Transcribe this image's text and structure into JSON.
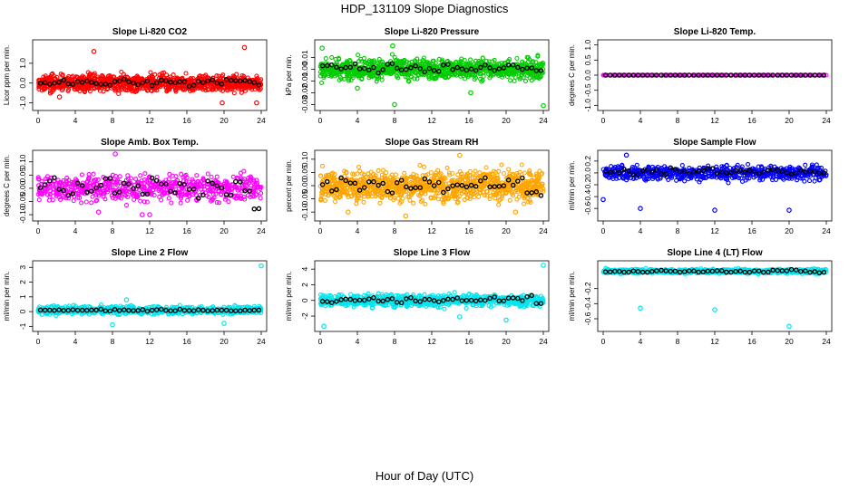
{
  "figure": {
    "title": "HDP_131109  Slope Diagnostics",
    "xlabel": "Hour of Day (UTC)"
  },
  "chart_data": [
    {
      "type": "scatter",
      "title": "Slope Li-820 CO2",
      "ylabel": "Licor ppm per min.",
      "xlim": [
        0,
        24
      ],
      "ylim": [
        -1.2,
        2.0
      ],
      "x_ticks": [
        0,
        4,
        8,
        12,
        16,
        20,
        24
      ],
      "y_ticks": [
        -1.0,
        0.0,
        1.0
      ],
      "y_tick_labels": [
        "-1.0",
        "0.0",
        "1.0"
      ],
      "color": "#ff0000",
      "density": "dense",
      "spread": 0.28,
      "center": 0.0,
      "hourly_means": [
        0.05,
        0.0,
        0.1,
        -0.05,
        0.05,
        0.1,
        0.0,
        -0.1,
        0.05,
        0.15,
        0.0,
        0.05,
        -0.05,
        0.1,
        0.0,
        0.05,
        -0.1,
        0.05,
        0.1,
        0.0,
        0.2,
        0.05,
        0.1,
        -0.05
      ],
      "outliers": [
        {
          "x": 6,
          "y": 1.6
        },
        {
          "x": 22.2,
          "y": 1.8
        },
        {
          "x": 19.8,
          "y": -1.0
        },
        {
          "x": 23.5,
          "y": -1.0
        },
        {
          "x": 2.3,
          "y": -0.7
        }
      ]
    },
    {
      "type": "scatter",
      "title": "Slope Li-820 Pressure",
      "ylabel": "kPa per min.",
      "xlim": [
        0,
        24
      ],
      "ylim": [
        -0.032,
        0.022
      ],
      "x_ticks": [
        0,
        4,
        8,
        12,
        16,
        20,
        24
      ],
      "y_ticks": [
        -0.03,
        -0.02,
        -0.01,
        0.0,
        0.01
      ],
      "y_tick_labels": [
        "-0.03",
        "-0.02",
        "-0.01",
        "0.00",
        "0.01"
      ],
      "color": "#00cc00",
      "density": "dense",
      "spread": 0.006,
      "center": 0.0,
      "hourly_means": [
        0.004,
        0.002,
        0.0,
        0.003,
        0.001,
        0.0,
        -0.002,
        0.004,
        0.001,
        0.0,
        0.002,
        -0.001,
        0.0,
        0.003,
        0.001,
        0.0,
        -0.001,
        0.002,
        0.0,
        0.001,
        0.002,
        0.0,
        0.001,
        0.0
      ],
      "outliers": [
        {
          "x": 0.2,
          "y": 0.018
        },
        {
          "x": 8.0,
          "y": -0.03
        },
        {
          "x": 24.0,
          "y": -0.031
        },
        {
          "x": 16.2,
          "y": -0.02
        },
        {
          "x": 4.0,
          "y": -0.016
        },
        {
          "x": 7.8,
          "y": 0.02
        }
      ]
    },
    {
      "type": "scatter",
      "title": "Slope Li-820 Temp.",
      "ylabel": "degrees C per min.",
      "xlim": [
        0,
        24
      ],
      "ylim": [
        -1.05,
        1.05
      ],
      "x_ticks": [
        0,
        4,
        8,
        12,
        16,
        20,
        24
      ],
      "y_ticks": [
        -1.0,
        -0.5,
        0.0,
        0.5,
        1.0
      ],
      "y_tick_labels": [
        "-1.0",
        "-0.5",
        "0.0",
        "0.5",
        "1.0"
      ],
      "color": "#ff00ff",
      "density": "line",
      "spread": 0.0,
      "center": 0.0,
      "hourly_means": [
        0,
        0,
        0,
        0,
        0,
        0,
        0,
        0,
        0,
        0,
        0,
        0,
        0,
        0,
        0,
        0,
        0,
        0,
        0,
        0,
        0,
        0,
        0,
        0
      ],
      "outliers": []
    },
    {
      "type": "scatter",
      "title": "Slope Amb. Box Temp.",
      "ylabel": "degrees C per min.",
      "xlim": [
        0,
        24
      ],
      "ylim": [
        -0.11,
        0.13
      ],
      "x_ticks": [
        0,
        4,
        8,
        12,
        16,
        20,
        24
      ],
      "y_ticks": [
        -0.1,
        -0.05,
        0.0,
        0.05,
        0.1
      ],
      "y_tick_labels": [
        "-0.10",
        "-0.05",
        "0.00",
        "0.05",
        "0.10"
      ],
      "color": "#ff00ff",
      "density": "medium",
      "spread": 0.035,
      "center": 0.0,
      "hourly_means": [
        0.01,
        0.03,
        0.0,
        -0.03,
        0.02,
        -0.02,
        0.01,
        0.03,
        -0.01,
        0.02,
        0.0,
        -0.02,
        0.03,
        0.01,
        -0.01,
        0.02,
        0.0,
        -0.03,
        0.02,
        0.01,
        -0.02,
        0.03,
        0.0,
        -0.08
      ],
      "outliers": [
        {
          "x": 8.3,
          "y": 0.13
        },
        {
          "x": 12.0,
          "y": -0.1
        },
        {
          "x": 11.2,
          "y": -0.1
        },
        {
          "x": 6.5,
          "y": -0.09
        }
      ]
    },
    {
      "type": "scatter",
      "title": "Slope Gas Stream RH",
      "ylabel": "percent per min.",
      "xlim": [
        0,
        24
      ],
      "ylim": [
        -0.12,
        0.12
      ],
      "x_ticks": [
        0,
        4,
        8,
        12,
        16,
        20,
        24
      ],
      "y_ticks": [
        -0.1,
        -0.05,
        0.0,
        0.05,
        0.1
      ],
      "y_tick_labels": [
        "-0.10",
        "-0.05",
        "0.00",
        "0.05",
        "0.10"
      ],
      "color": "#ffa500",
      "density": "dense",
      "spread": 0.04,
      "center": 0.0,
      "hourly_means": [
        0.01,
        -0.02,
        0.02,
        0.0,
        -0.01,
        0.02,
        0.0,
        -0.02,
        0.01,
        0.0,
        -0.01,
        0.02,
        0.0,
        -0.02,
        0.01,
        0.0,
        -0.01,
        0.02,
        0.0,
        -0.01,
        0.01,
        0.02,
        -0.02,
        -0.03
      ],
      "outliers": [
        {
          "x": 9.2,
          "y": -0.115
        },
        {
          "x": 3.0,
          "y": -0.1
        },
        {
          "x": 15.0,
          "y": 0.115
        },
        {
          "x": 21.0,
          "y": -0.1
        }
      ]
    },
    {
      "type": "scatter",
      "title": "Slope Sample Flow",
      "ylabel": "ml/min per min.",
      "xlim": [
        0,
        24
      ],
      "ylim": [
        -0.75,
        0.32
      ],
      "x_ticks": [
        0,
        4,
        8,
        12,
        16,
        20,
        24
      ],
      "y_ticks": [
        -0.6,
        -0.4,
        -0.2,
        0.0,
        0.2
      ],
      "y_tick_labels": [
        "-0.6",
        "-0.4",
        "-0.2",
        "0.0",
        "0.2"
      ],
      "color": "#0000ff",
      "density": "medium",
      "spread": 0.09,
      "center": 0.0,
      "hourly_means": [
        0.02,
        0.0,
        0.05,
        -0.02,
        0.04,
        0.03,
        -0.01,
        0.06,
        0.02,
        0.0,
        0.03,
        0.05,
        0.01,
        -0.02,
        0.04,
        0.02,
        0.0,
        0.03,
        0.05,
        0.01,
        -0.01,
        0.02,
        0.03,
        0.0
      ],
      "outliers": [
        {
          "x": 4.0,
          "y": -0.6
        },
        {
          "x": 12.0,
          "y": -0.63
        },
        {
          "x": 20.0,
          "y": -0.63
        },
        {
          "x": 0.0,
          "y": -0.45
        },
        {
          "x": 2.5,
          "y": 0.3
        }
      ]
    },
    {
      "type": "scatter",
      "title": "Slope Line 2 Flow",
      "ylabel": "ml/min per min.",
      "xlim": [
        0,
        24
      ],
      "ylim": [
        -1.1,
        3.2
      ],
      "x_ticks": [
        0,
        4,
        8,
        12,
        16,
        20,
        24
      ],
      "y_ticks": [
        -1,
        0,
        1,
        2,
        3
      ],
      "y_tick_labels": [
        "-1",
        "0",
        "1",
        "2",
        "3"
      ],
      "color": "#00e5ee",
      "density": "band",
      "spread": 0.18,
      "center": 0.1,
      "hourly_means": [
        0.1,
        0.12,
        0.1,
        0.08,
        0.12,
        0.1,
        0.11,
        0.09,
        0.1,
        0.12,
        0.1,
        0.08,
        0.11,
        0.1,
        0.09,
        0.12,
        0.1,
        0.08,
        0.1,
        0.11,
        0.1,
        0.09,
        0.12,
        0.1
      ],
      "outliers": [
        {
          "x": 24.0,
          "y": 3.1
        },
        {
          "x": 8.0,
          "y": -0.9
        },
        {
          "x": 20.0,
          "y": -0.8
        },
        {
          "x": 9.5,
          "y": 0.8
        }
      ]
    },
    {
      "type": "scatter",
      "title": "Slope Line 3 Flow",
      "ylabel": "ml/min per min.",
      "xlim": [
        0,
        24
      ],
      "ylim": [
        -3.5,
        4.6
      ],
      "x_ticks": [
        0,
        4,
        8,
        12,
        16,
        20,
        24
      ],
      "y_ticks": [
        -2,
        0,
        2,
        4
      ],
      "y_tick_labels": [
        "-2",
        "0",
        "2",
        "4"
      ],
      "color": "#00e5ee",
      "density": "band",
      "spread": 0.55,
      "center": 0.0,
      "hourly_means": [
        0.0,
        -0.2,
        0.1,
        0.0,
        -0.1,
        0.3,
        0.0,
        0.1,
        -0.2,
        0.2,
        0.0,
        0.1,
        -0.1,
        0.0,
        0.2,
        0.1,
        0.0,
        -0.1,
        0.3,
        0.0,
        0.2,
        0.1,
        0.5,
        -0.3
      ],
      "outliers": [
        {
          "x": 24.0,
          "y": 4.5
        },
        {
          "x": 0.4,
          "y": -3.3
        },
        {
          "x": 20.0,
          "y": -2.5
        },
        {
          "x": 15.0,
          "y": -2.1
        }
      ]
    },
    {
      "type": "scatter",
      "title": "Slope Line 4 (LT) Flow",
      "ylabel": "ml/min per min.",
      "xlim": [
        0,
        24
      ],
      "ylim": [
        -0.72,
        0.12
      ],
      "x_ticks": [
        0,
        4,
        8,
        12,
        16,
        20,
        24
      ],
      "y_ticks": [
        -0.6,
        -0.4,
        -0.2
      ],
      "y_tick_labels": [
        "-0.6",
        "-0.4",
        "-0.2"
      ],
      "color": "#00e5ee",
      "density": "band",
      "spread": 0.02,
      "center": 0.03,
      "hourly_means": [
        0.02,
        0.03,
        0.02,
        0.03,
        0.02,
        0.03,
        0.04,
        0.03,
        0.02,
        0.03,
        0.02,
        0.03,
        0.04,
        0.02,
        0.03,
        0.02,
        0.03,
        0.02,
        0.04,
        0.03,
        0.05,
        0.03,
        0.02,
        0.01
      ],
      "outliers": [
        {
          "x": 4.0,
          "y": -0.46
        },
        {
          "x": 12.0,
          "y": -0.48
        },
        {
          "x": 20.0,
          "y": -0.7
        }
      ]
    }
  ]
}
